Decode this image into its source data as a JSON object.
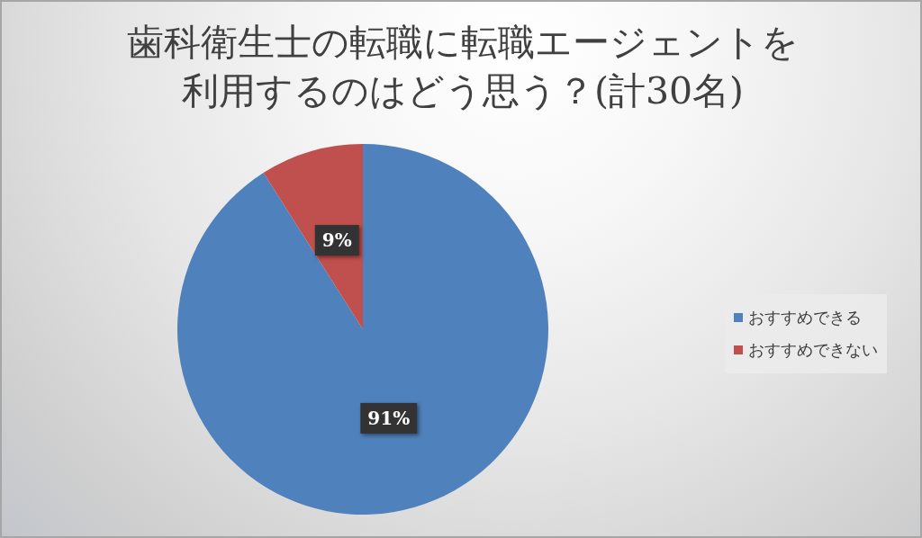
{
  "chart_data": {
    "type": "pie",
    "title": "歯科衛生士の転職に転職エージェントを利用するのはどう思う？(計30名)",
    "categories": [
      "おすすめできる",
      "おすすめできない"
    ],
    "values": [
      91,
      9
    ],
    "value_labels": [
      "91%",
      "9%"
    ],
    "colors": [
      "#4f81bd",
      "#c0504d"
    ],
    "legend": "right"
  }
}
